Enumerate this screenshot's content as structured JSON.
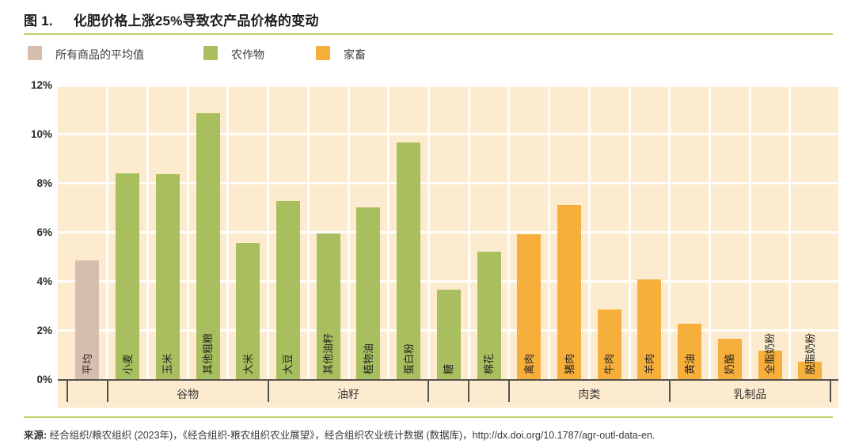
{
  "header": {
    "figure_label": "图 1.",
    "title": "化肥价格上涨25%导致农产品价格的变动"
  },
  "legend": [
    {
      "label": "所有商品的平均值",
      "color": "#d6beaf"
    },
    {
      "label": "农作物",
      "color": "#a9be5e"
    },
    {
      "label": "家畜",
      "color": "#f7af3b"
    }
  ],
  "source": {
    "prefix": "来源:",
    "text": " 经合组织/粮农组织 (2023年)，《经合组织-粮农组织农业展望》，经合组织农业统计数据 (数据库)，http://dx.doi.org/10.1787/agr-outl-data-en."
  },
  "chart_data": {
    "type": "bar",
    "title": "化肥价格上涨25%导致农产品价格的变动",
    "xlabel": "",
    "ylabel": "",
    "ylim": [
      0,
      12
    ],
    "ytick_labels": [
      "0%",
      "2%",
      "4%",
      "6%",
      "8%",
      "10%",
      "12%"
    ],
    "grid": true,
    "legend_position": "top",
    "bars": [
      {
        "label": "平均",
        "value": 4.85,
        "series": "所有商品的平均值"
      },
      {
        "label": "小麦",
        "value": 8.4,
        "series": "农作物"
      },
      {
        "label": "玉米",
        "value": 8.35,
        "series": "农作物"
      },
      {
        "label": "其他粗粮",
        "value": 10.85,
        "series": "农作物"
      },
      {
        "label": "大米",
        "value": 5.55,
        "series": "农作物"
      },
      {
        "label": "大豆",
        "value": 7.25,
        "series": "农作物"
      },
      {
        "label": "其他油籽",
        "value": 5.95,
        "series": "农作物"
      },
      {
        "label": "植物油",
        "value": 7.0,
        "series": "农作物"
      },
      {
        "label": "蛋白粉",
        "value": 9.65,
        "series": "农作物"
      },
      {
        "label": "糖",
        "value": 3.65,
        "series": "农作物"
      },
      {
        "label": "棉花",
        "value": 5.2,
        "series": "农作物"
      },
      {
        "label": "禽肉",
        "value": 5.9,
        "series": "家畜"
      },
      {
        "label": "猪肉",
        "value": 7.1,
        "series": "家畜"
      },
      {
        "label": "牛肉",
        "value": 2.85,
        "series": "家畜"
      },
      {
        "label": "羊肉",
        "value": 4.05,
        "series": "家畜"
      },
      {
        "label": "黄油",
        "value": 2.25,
        "series": "家畜"
      },
      {
        "label": "奶酪",
        "value": 1.65,
        "series": "家畜"
      },
      {
        "label": "全脂奶粉",
        "value": 1.15,
        "series": "家畜"
      },
      {
        "label": "脱脂奶粉",
        "value": 0.7,
        "series": "家畜"
      }
    ],
    "groups": [
      {
        "label": "",
        "start": 0,
        "end": 0
      },
      {
        "label": "谷物",
        "start": 1,
        "end": 4
      },
      {
        "label": "油籽",
        "start": 5,
        "end": 8
      },
      {
        "label": "",
        "start": 9,
        "end": 9
      },
      {
        "label": "",
        "start": 10,
        "end": 10
      },
      {
        "label": "肉类",
        "start": 11,
        "end": 14
      },
      {
        "label": "乳制品",
        "start": 15,
        "end": 18
      }
    ],
    "series_colors": {
      "所有商品的平均值": "#d6beaf",
      "农作物": "#a9be5e",
      "家畜": "#f7af3b"
    }
  },
  "colors": {
    "plot_background": "#fcebce",
    "gridline": "#ffffff",
    "axis": "#55524c",
    "rule": "#c3ce67",
    "text": "#3c3c3b"
  }
}
